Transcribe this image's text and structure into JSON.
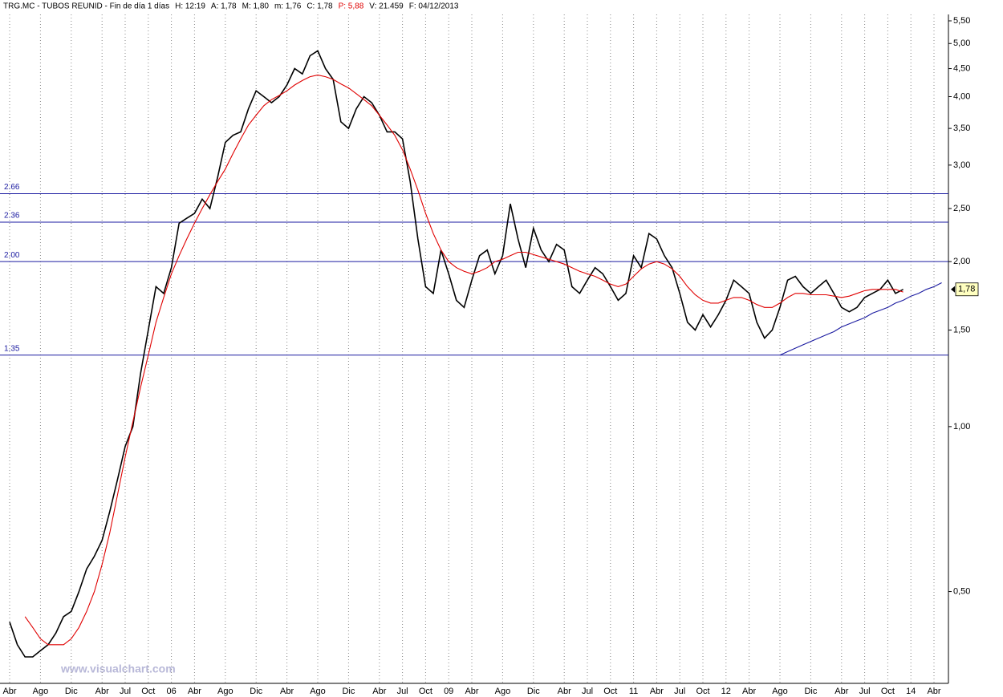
{
  "chart_data": {
    "type": "line",
    "header": [
      "TRG.MC - TUBOS REUNID - Fin de día 1 días",
      "H: 12:19",
      "A: 1,78",
      "M: 1,80",
      "m: 1,76",
      "C: 1,78",
      "P: 5,88",
      "V: 21.459",
      "F: 04/12/2013"
    ],
    "watermark": "www.visualchart.com",
    "log_scale": true,
    "grid": true,
    "ylim": [
      0.34,
      5.65
    ],
    "yticks": [
      {
        "value": 0.5,
        "label": "0,50"
      },
      {
        "value": 1.0,
        "label": "1,00"
      },
      {
        "value": 1.5,
        "label": "1,50"
      },
      {
        "value": 2.0,
        "label": "2,00"
      },
      {
        "value": 2.5,
        "label": "2,50"
      },
      {
        "value": 3.0,
        "label": "3,00"
      },
      {
        "value": 3.5,
        "label": "3,50"
      },
      {
        "value": 4.0,
        "label": "4,00"
      },
      {
        "value": 4.5,
        "label": "4,50"
      },
      {
        "value": 5.0,
        "label": "5,00"
      },
      {
        "value": 5.5,
        "label": "5,50"
      }
    ],
    "last_value": {
      "value": 1.78,
      "label": "1,78"
    },
    "hlines": [
      {
        "value": 2.66,
        "label": "2.66",
        "color": "#1a1aa0"
      },
      {
        "value": 2.36,
        "label": "2.36",
        "color": "#1a1aa0"
      },
      {
        "value": 2.0,
        "label": "2.00",
        "color": "#1a1aa0"
      },
      {
        "value": 1.35,
        "label": "1.35",
        "color": "#1a1aa0"
      }
    ],
    "categories": [
      "Abr",
      null,
      null,
      null,
      "Ago",
      null,
      null,
      null,
      "Dic",
      null,
      null,
      null,
      "Abr",
      null,
      null,
      "Jul",
      null,
      null,
      "Oct",
      null,
      null,
      "06",
      null,
      null,
      "Abr",
      null,
      null,
      null,
      "Ago",
      null,
      null,
      null,
      "Dic",
      null,
      null,
      null,
      "Abr",
      null,
      null,
      null,
      "Ago",
      null,
      null,
      null,
      "Dic",
      null,
      null,
      null,
      "Abr",
      null,
      null,
      "Jul",
      null,
      null,
      "Oct",
      null,
      null,
      "09",
      null,
      null,
      "Abr",
      null,
      null,
      null,
      "Ago",
      null,
      null,
      null,
      "Dic",
      null,
      null,
      null,
      "Abr",
      null,
      null,
      "Jul",
      null,
      null,
      "Oct",
      null,
      null,
      "11",
      null,
      null,
      "Abr",
      null,
      null,
      "Jul",
      null,
      null,
      "Oct",
      null,
      null,
      "12",
      null,
      null,
      "Abr",
      null,
      null,
      null,
      "Ago",
      null,
      null,
      null,
      "Dic",
      null,
      null,
      null,
      "Abr",
      null,
      null,
      "Jul",
      null,
      null,
      "Oct",
      null,
      null,
      "14",
      null,
      null,
      "Abr",
      null
    ],
    "series": [
      {
        "color": "#000000",
        "values": [
          0.44,
          0.4,
          0.38,
          0.38,
          0.39,
          0.4,
          0.42,
          0.45,
          0.46,
          0.5,
          0.55,
          0.58,
          0.62,
          0.7,
          0.8,
          0.92,
          1.0,
          1.25,
          1.5,
          1.8,
          1.75,
          1.95,
          2.35,
          2.4,
          2.45,
          2.6,
          2.5,
          2.85,
          3.3,
          3.4,
          3.45,
          3.8,
          4.1,
          4.0,
          3.9,
          4.0,
          4.2,
          4.5,
          4.4,
          4.75,
          4.85,
          4.5,
          4.3,
          3.6,
          3.5,
          3.8,
          4.0,
          3.9,
          3.7,
          3.45,
          3.45,
          3.35,
          2.8,
          2.2,
          1.8,
          1.75,
          2.1,
          1.9,
          1.7,
          1.65,
          1.85,
          2.05,
          2.1,
          1.9,
          2.05,
          2.55,
          2.2,
          1.95,
          2.3,
          2.1,
          2.0,
          2.15,
          2.1,
          1.8,
          1.75,
          1.85,
          1.95,
          1.9,
          1.8,
          1.7,
          1.75,
          2.05,
          1.95,
          2.25,
          2.2,
          2.05,
          1.95,
          1.75,
          1.55,
          1.5,
          1.6,
          1.52,
          1.6,
          1.7,
          1.85,
          1.8,
          1.75,
          1.55,
          1.45,
          1.5,
          1.65,
          1.85,
          1.88,
          1.8,
          1.75,
          1.8,
          1.85,
          1.75,
          1.65,
          1.62,
          1.65,
          1.72,
          1.75,
          1.78,
          1.85,
          1.75,
          1.78,
          null,
          null,
          null,
          null,
          null
        ]
      },
      {
        "color": "#e00000",
        "values": [
          null,
          null,
          0.45,
          0.43,
          0.41,
          0.4,
          0.4,
          0.4,
          0.41,
          0.43,
          0.46,
          0.5,
          0.56,
          0.64,
          0.75,
          0.88,
          1.02,
          1.18,
          1.35,
          1.55,
          1.72,
          1.9,
          2.05,
          2.2,
          2.35,
          2.5,
          2.65,
          2.8,
          2.95,
          3.15,
          3.35,
          3.55,
          3.7,
          3.85,
          3.95,
          4.02,
          4.1,
          4.2,
          4.28,
          4.35,
          4.38,
          4.35,
          4.3,
          4.22,
          4.15,
          4.05,
          3.95,
          3.85,
          3.7,
          3.55,
          3.4,
          3.2,
          2.95,
          2.7,
          2.45,
          2.25,
          2.1,
          2.0,
          1.95,
          1.92,
          1.9,
          1.92,
          1.95,
          2.0,
          2.02,
          2.05,
          2.08,
          2.08,
          2.06,
          2.04,
          2.02,
          2.0,
          1.98,
          1.95,
          1.92,
          1.9,
          1.88,
          1.85,
          1.82,
          1.8,
          1.82,
          1.88,
          1.94,
          1.98,
          2.0,
          1.98,
          1.94,
          1.88,
          1.8,
          1.74,
          1.7,
          1.68,
          1.68,
          1.7,
          1.72,
          1.72,
          1.7,
          1.67,
          1.65,
          1.65,
          1.68,
          1.72,
          1.75,
          1.75,
          1.74,
          1.74,
          1.74,
          1.73,
          1.72,
          1.73,
          1.75,
          1.77,
          1.78,
          1.78,
          1.78,
          1.78,
          1.76,
          null,
          null,
          null,
          null,
          null
        ]
      },
      {
        "color": "#1a1aa0",
        "values": [
          null,
          null,
          null,
          null,
          null,
          null,
          null,
          null,
          null,
          null,
          null,
          null,
          null,
          null,
          null,
          null,
          null,
          null,
          null,
          null,
          null,
          null,
          null,
          null,
          null,
          null,
          null,
          null,
          null,
          null,
          null,
          null,
          null,
          null,
          null,
          null,
          null,
          null,
          null,
          null,
          null,
          null,
          null,
          null,
          null,
          null,
          null,
          null,
          null,
          null,
          null,
          null,
          null,
          null,
          null,
          null,
          null,
          null,
          null,
          null,
          null,
          null,
          null,
          null,
          null,
          null,
          null,
          null,
          null,
          null,
          null,
          null,
          null,
          null,
          null,
          null,
          null,
          null,
          null,
          null,
          null,
          null,
          null,
          null,
          null,
          null,
          null,
          null,
          null,
          null,
          null,
          null,
          null,
          null,
          null,
          null,
          null,
          null,
          null,
          null,
          1.35,
          1.37,
          1.39,
          1.41,
          1.43,
          1.45,
          1.47,
          1.49,
          1.52,
          1.54,
          1.56,
          1.58,
          1.61,
          1.63,
          1.65,
          1.68,
          1.7,
          1.73,
          1.75,
          1.78,
          1.8,
          1.83
        ]
      }
    ]
  }
}
